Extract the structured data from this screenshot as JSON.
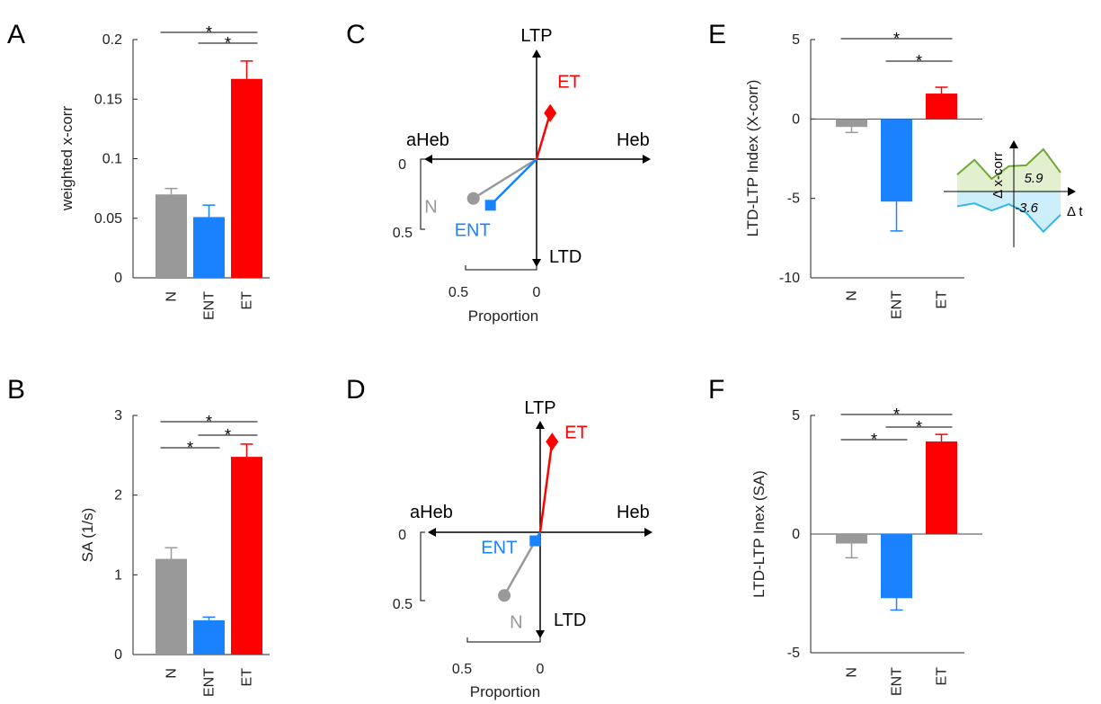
{
  "colors": {
    "N": "#999999",
    "ENT": "#1a82ff",
    "ET": "#ff0000",
    "inset_pos": "#6fa832",
    "inset_neg": "#33b5e8"
  },
  "chart_data": [
    {
      "id": "A",
      "type": "bar",
      "panel_label": "A",
      "categories": [
        "N",
        "ENT",
        "ET"
      ],
      "values": [
        0.07,
        0.051,
        0.167
      ],
      "errors": [
        0.005,
        0.01,
        0.015
      ],
      "ylabel": "weighted x-corr",
      "ylim": [
        0,
        0.2
      ],
      "yticks": [
        0,
        0.05,
        0.1,
        0.15,
        0.2
      ],
      "ytick_labels": [
        "0",
        "0.05",
        "0.1",
        "0.15",
        "0.2"
      ],
      "significance": [
        {
          "from": "N",
          "to": "ET",
          "label": "*"
        },
        {
          "from": "ENT",
          "to": "ET",
          "label": "*"
        }
      ]
    },
    {
      "id": "B",
      "type": "bar",
      "panel_label": "B",
      "categories": [
        "N",
        "ENT",
        "ET"
      ],
      "values": [
        1.2,
        0.43,
        2.48
      ],
      "errors": [
        0.14,
        0.04,
        0.16
      ],
      "ylabel": "SA (1/s)",
      "ylim": [
        0,
        3
      ],
      "yticks": [
        0,
        1,
        2,
        3
      ],
      "ytick_labels": [
        "0",
        "1",
        "2",
        "3"
      ],
      "significance": [
        {
          "from": "N",
          "to": "ET",
          "label": "*"
        },
        {
          "from": "N",
          "to": "ENT",
          "label": "*"
        },
        {
          "from": "ENT",
          "to": "ET",
          "label": "*"
        }
      ]
    },
    {
      "id": "C",
      "type": "scatter",
      "panel_label": "C",
      "axes": {
        "up": "LTP",
        "down": "LTD",
        "left": "aHeb",
        "right": "Heb"
      },
      "scale_labels": {
        "x_zero": "0",
        "x_end": "0.5",
        "y_zero": "0",
        "y_end": "0.5",
        "xlabel": "Proportion"
      },
      "points": [
        {
          "name": "N",
          "x": -0.37,
          "y": -0.23,
          "marker": "circle"
        },
        {
          "name": "ENT",
          "x": -0.27,
          "y": -0.27,
          "marker": "square"
        },
        {
          "name": "ET",
          "x": 0.08,
          "y": 0.27,
          "marker": "diamond"
        }
      ]
    },
    {
      "id": "D",
      "type": "scatter",
      "panel_label": "D",
      "axes": {
        "up": "LTP",
        "down": "LTD",
        "left": "aHeb",
        "right": "Heb"
      },
      "scale_labels": {
        "x_zero": "0",
        "x_end": "0.5",
        "y_zero": "0",
        "y_end": "0.5",
        "xlabel": "Proportion"
      },
      "points": [
        {
          "name": "N",
          "x": -0.21,
          "y": -0.37,
          "marker": "circle"
        },
        {
          "name": "ENT",
          "x": -0.03,
          "y": -0.05,
          "marker": "square"
        },
        {
          "name": "ET",
          "x": 0.07,
          "y": 0.53,
          "marker": "diamond"
        }
      ]
    },
    {
      "id": "E",
      "type": "bar",
      "panel_label": "E",
      "categories": [
        "N",
        "ENT",
        "ET"
      ],
      "values": [
        -0.5,
        -5.2,
        1.6
      ],
      "errors": [
        0.35,
        1.85,
        0.4
      ],
      "ylabel": "LTD-LTP Index (X-corr)",
      "ylim": [
        -10,
        5
      ],
      "yticks": [
        -10,
        -5,
        0,
        5
      ],
      "ytick_labels": [
        "-10",
        "-5",
        "0",
        "5"
      ],
      "significance": [
        {
          "from": "N",
          "to": "ET",
          "label": "*"
        },
        {
          "from": "ENT",
          "to": "ET",
          "label": "*"
        }
      ],
      "inset": {
        "type": "area",
        "ylabel": "Δ x-corr",
        "xlabel": "Δ t",
        "positive_area_label": "5.9",
        "negative_area_label": "-3.6",
        "positive_profile": [
          0.4,
          0.75,
          0.3,
          0.6,
          0.62,
          1.0,
          0.45
        ],
        "negative_profile": [
          0.35,
          0.28,
          0.45,
          0.3,
          0.5,
          0.95,
          0.55
        ]
      }
    },
    {
      "id": "F",
      "type": "bar",
      "panel_label": "F",
      "categories": [
        "N",
        "ENT",
        "ET"
      ],
      "values": [
        -0.4,
        -2.7,
        3.9
      ],
      "errors": [
        0.6,
        0.5,
        0.3
      ],
      "ylabel": "LTD-LTP Inex (SA)",
      "ylim": [
        -5,
        5
      ],
      "yticks": [
        -5,
        0,
        5
      ],
      "ytick_labels": [
        "-5",
        "0",
        "5"
      ],
      "significance": [
        {
          "from": "N",
          "to": "ET",
          "label": "*"
        },
        {
          "from": "N",
          "to": "ENT",
          "label": "*"
        },
        {
          "from": "ENT",
          "to": "ET",
          "label": "*"
        }
      ]
    }
  ]
}
